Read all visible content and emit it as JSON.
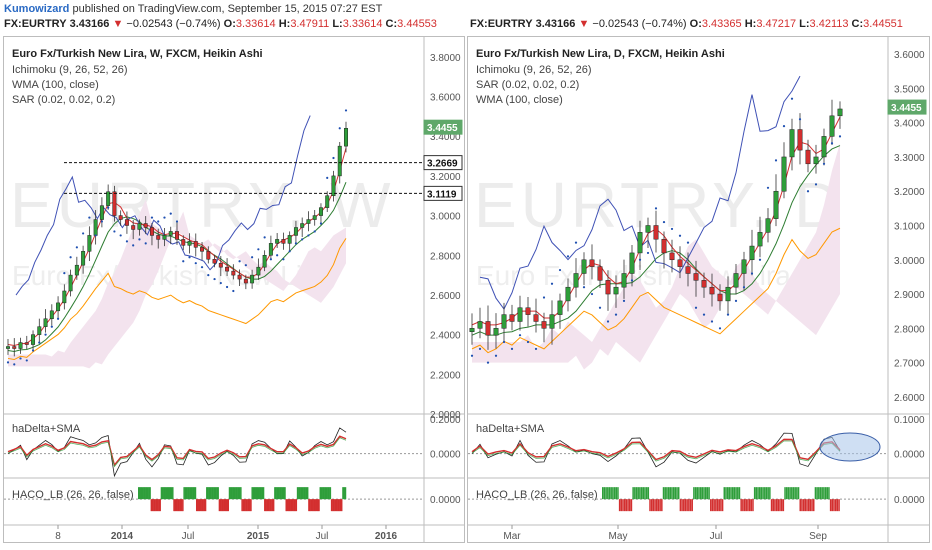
{
  "publisher": {
    "author": "Kumowizard",
    "text": "published on TradingView.com, September 15, 2015 07:27 EST"
  },
  "colors": {
    "up": "#2e9e3a",
    "down": "#d32f2f",
    "tenkan": "#d32f2f",
    "kijun": "#2e7d32",
    "chikou": "#3f51b5",
    "wma": "#ff9800",
    "sar": "#1e4fb0",
    "cloud": "#f3e3ee",
    "price_tag": "#5fa86a",
    "axis_text": "#555555"
  },
  "charts": [
    {
      "ticker": {
        "symbol": "FX:EURTRY",
        "last": "3.43166",
        "arrow": "▼",
        "change": "−0.02543 (−0.74%)",
        "o_label": "O:",
        "o": "3.33614",
        "h_label": "H:",
        "h": "3.47911",
        "l_label": "L:",
        "l": "3.33614",
        "c_label": "C:",
        "c": "3.44553"
      },
      "title": "Euro Fx/Turkish New Lira, W, FXCM, Heikin Ashi",
      "legend": [
        "Ichimoku (9, 26, 52, 26)",
        "WMA (100, close)",
        "SAR (0.02, 0.02, 0.2)"
      ],
      "watermark_big": "EURTRY, W",
      "watermark_small": "Euro Fx/Turkish New Lira",
      "price_axis": [
        "3.8000",
        "3.6000",
        "3.4000",
        "3.2000",
        "3.0000",
        "2.8000",
        "2.6000",
        "2.4000",
        "2.2000",
        "2.0000"
      ],
      "price_tags": [
        {
          "value": "3.4455",
          "style": "green"
        },
        {
          "value": "3.2669",
          "style": "white"
        },
        {
          "value": "3.1119",
          "style": "white"
        }
      ],
      "sub1": {
        "name": "haDelta+SMA",
        "axis": [
          "0.2000",
          "0.0000"
        ]
      },
      "sub2": {
        "name": "HACO_LB (26, 26, false)",
        "axis": [
          "0.0000"
        ]
      },
      "time_axis": [
        "8",
        "2014",
        "Jul",
        "2015",
        "Jul",
        "2016"
      ],
      "chart_data": {
        "type": "candlestick",
        "ylim": [
          2.0,
          3.9
        ],
        "series_close": [
          2.34,
          2.33,
          2.36,
          2.35,
          2.4,
          2.44,
          2.48,
          2.52,
          2.56,
          2.62,
          2.7,
          2.75,
          2.82,
          2.9,
          2.98,
          3.05,
          3.12,
          3.0,
          2.98,
          2.95,
          2.93,
          2.96,
          2.94,
          2.9,
          2.88,
          2.9,
          2.92,
          2.88,
          2.85,
          2.87,
          2.84,
          2.82,
          2.78,
          2.76,
          2.74,
          2.72,
          2.7,
          2.68,
          2.66,
          2.7,
          2.74,
          2.8,
          2.86,
          2.88,
          2.86,
          2.9,
          2.94,
          2.96,
          2.98,
          3.0,
          3.04,
          3.1,
          3.2,
          3.35,
          3.44
        ],
        "levels": [
          3.2669,
          3.1119
        ]
      }
    },
    {
      "ticker": {
        "symbol": "FX:EURTRY",
        "last": "3.43166",
        "arrow": "▼",
        "change": "−0.02543 (−0.74%)",
        "o_label": "O:",
        "o": "3.43365",
        "h_label": "H:",
        "h": "3.47217",
        "l_label": "L:",
        "l": "3.42113",
        "c_label": "C:",
        "c": "3.44551"
      },
      "title": "Euro Fx/Turkish New Lira, D, FXCM, Heikin Ashi",
      "legend": [
        "Ichimoku (9, 26, 52, 26)",
        "SAR (0.02, 0.02, 0.2)",
        "WMA (100, close)"
      ],
      "watermark_big": "EURTRY, D",
      "watermark_small": "Euro Fx/Turkish New Lira",
      "price_axis": [
        "3.6000",
        "3.5000",
        "3.4000",
        "3.3000",
        "3.2000",
        "3.1000",
        "3.0000",
        "2.9000",
        "2.8000",
        "2.7000",
        "2.6000"
      ],
      "price_tags": [
        {
          "value": "3.4455",
          "style": "green"
        }
      ],
      "sub1": {
        "name": "haDelta+SMA",
        "axis": [
          "0.1000",
          "0.0000"
        ]
      },
      "sub2": {
        "name": "HACO_LB (26, 26, false)",
        "axis": [
          "0.0000"
        ]
      },
      "time_axis": [
        "Mar",
        "May",
        "Jul",
        "Sep"
      ],
      "chart_data": {
        "type": "candlestick",
        "ylim": [
          2.55,
          3.65
        ],
        "series_close": [
          2.8,
          2.82,
          2.78,
          2.8,
          2.84,
          2.82,
          2.86,
          2.84,
          2.82,
          2.8,
          2.84,
          2.88,
          2.92,
          2.96,
          3.0,
          2.98,
          2.94,
          2.9,
          2.92,
          2.96,
          3.02,
          3.08,
          3.1,
          3.06,
          3.02,
          3.0,
          2.98,
          2.96,
          2.94,
          2.92,
          2.9,
          2.88,
          2.92,
          2.96,
          3.0,
          3.04,
          3.08,
          3.12,
          3.2,
          3.3,
          3.38,
          3.32,
          3.28,
          3.3,
          3.36,
          3.42,
          3.44
        ],
        "levels": []
      }
    }
  ]
}
